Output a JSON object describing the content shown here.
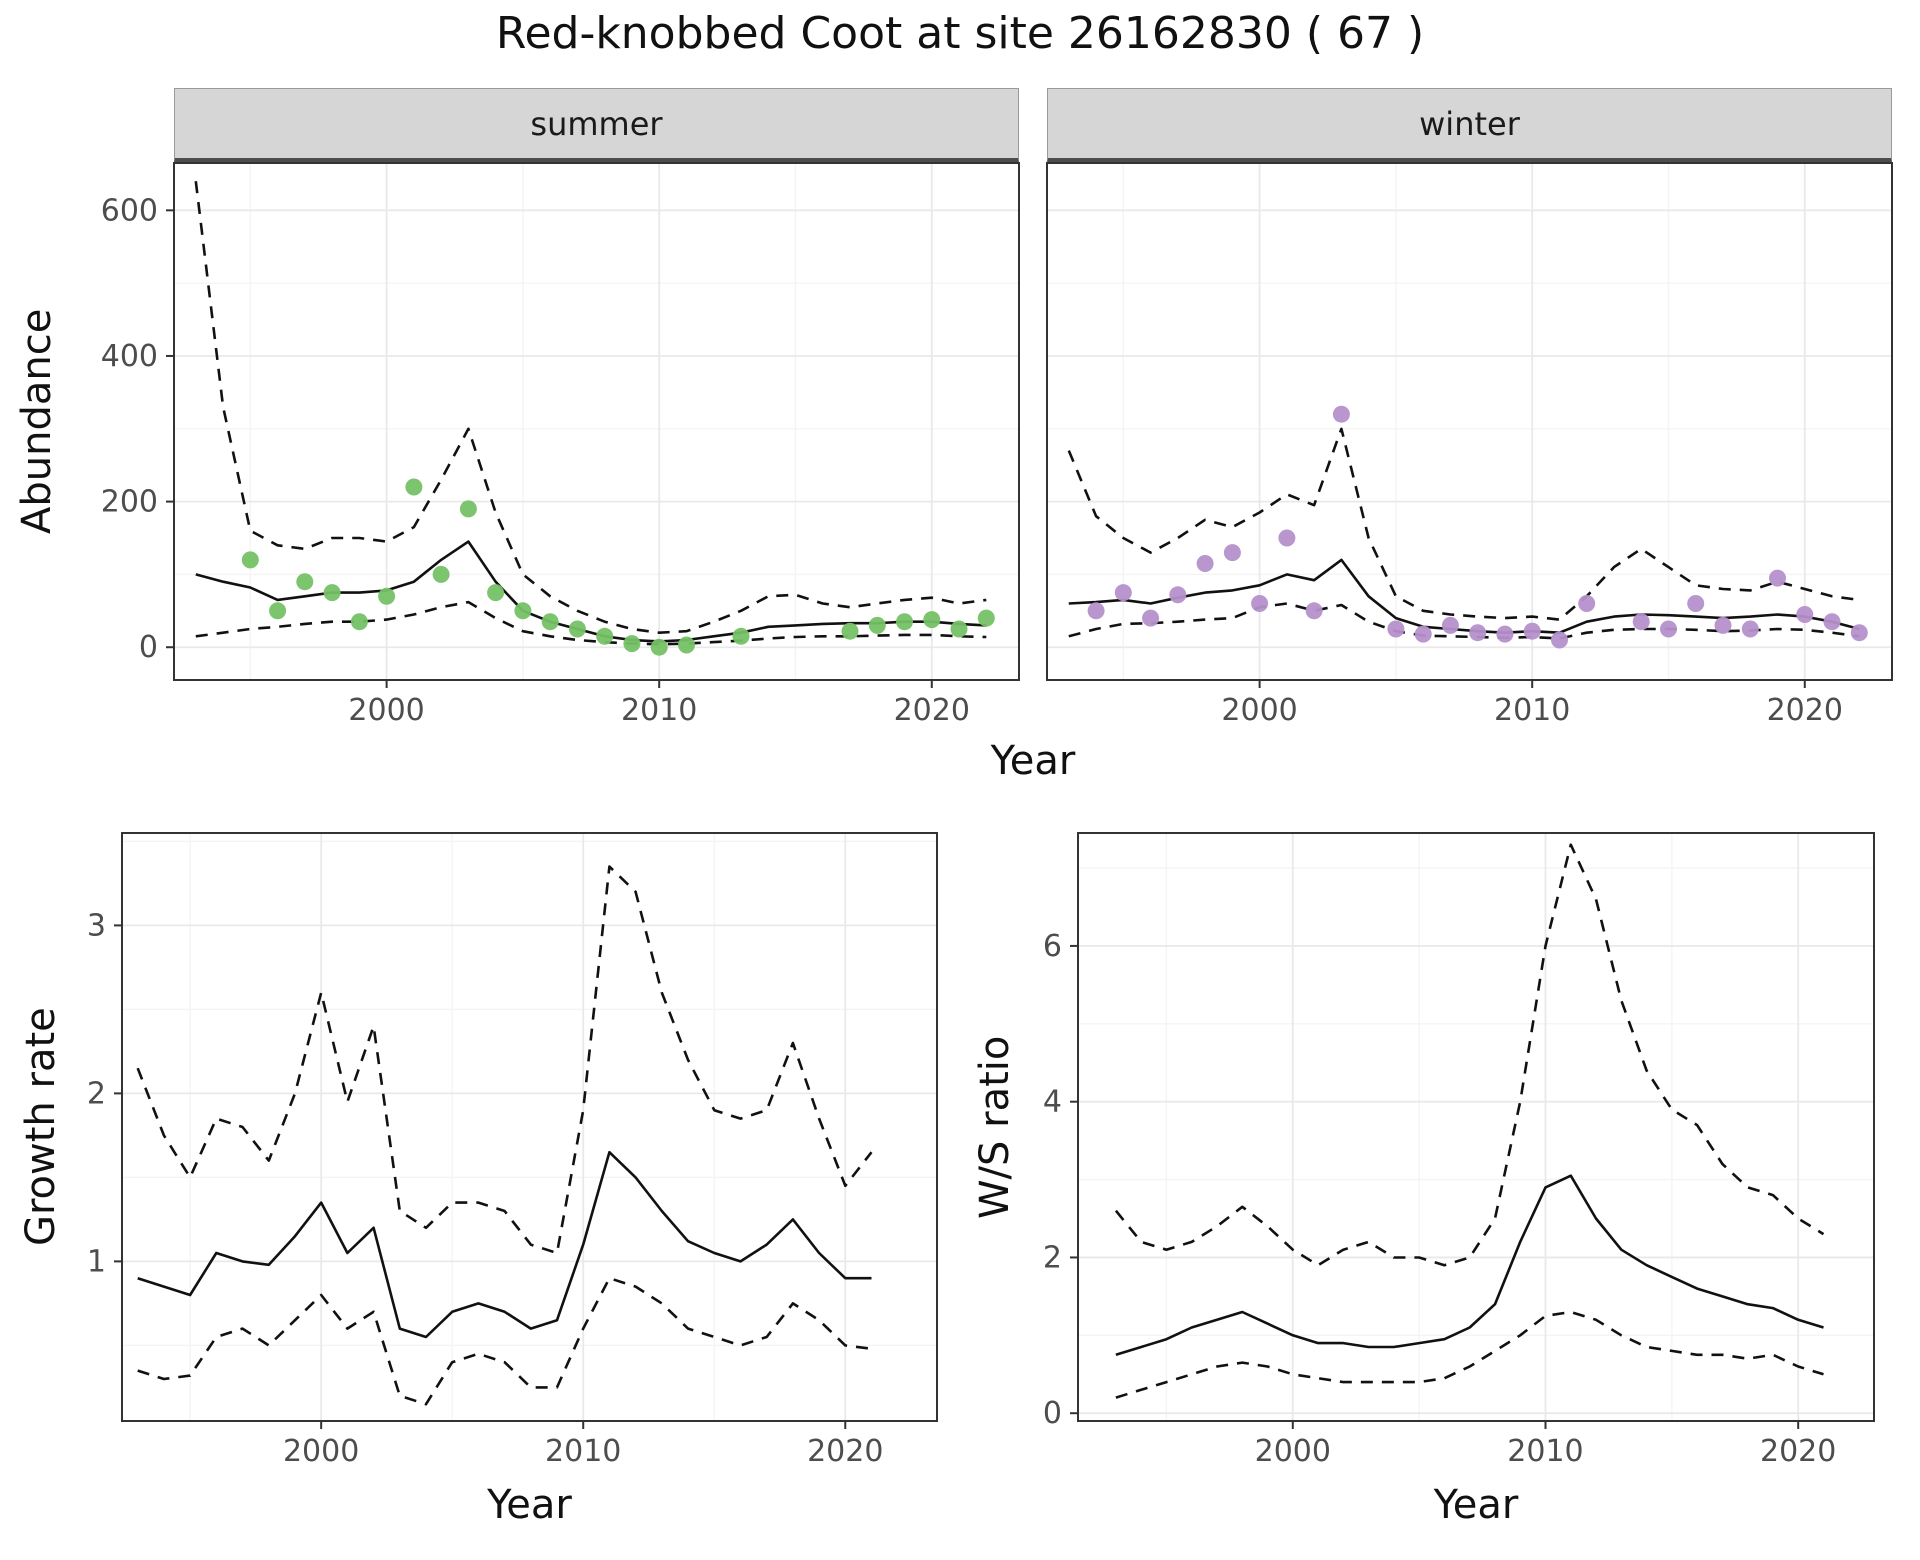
{
  "title": "Red-knobbed Coot at site 26162830 ( 67 )",
  "line_color": "#111111",
  "chart_data": [
    {
      "id": "summer",
      "type": "line",
      "facet_label": "summer",
      "ylabel": "Abundance",
      "xlabel": "Year",
      "xlim": [
        1992.2,
        2023.2
      ],
      "ylim": [
        -45,
        665
      ],
      "xticks": [
        2000,
        2010,
        2020
      ],
      "yticks": [
        0,
        200,
        400,
        600
      ],
      "show_y_labels": true,
      "point_color": "#75c165",
      "years": [
        1993,
        1994,
        1995,
        1996,
        1997,
        1998,
        1999,
        2000,
        2001,
        2002,
        2003,
        2004,
        2005,
        2006,
        2007,
        2008,
        2009,
        2010,
        2011,
        2012,
        2013,
        2014,
        2015,
        2016,
        2017,
        2018,
        2019,
        2020,
        2021,
        2022
      ],
      "series": [
        {
          "name": "modelled_median",
          "style": "solid",
          "values": [
            100,
            90,
            82,
            65,
            70,
            75,
            75,
            78,
            90,
            120,
            145,
            90,
            50,
            35,
            25,
            15,
            10,
            8,
            10,
            15,
            20,
            28,
            30,
            32,
            33,
            33,
            35,
            35,
            32,
            30
          ]
        },
        {
          "name": "upper_ci",
          "style": "dashed",
          "values": [
            640,
            330,
            160,
            140,
            135,
            150,
            150,
            145,
            165,
            230,
            300,
            185,
            100,
            70,
            50,
            35,
            25,
            20,
            22,
            35,
            50,
            70,
            72,
            60,
            55,
            60,
            65,
            68,
            60,
            65
          ]
        },
        {
          "name": "lower_ci",
          "style": "dashed",
          "values": [
            15,
            20,
            25,
            28,
            32,
            35,
            35,
            38,
            45,
            55,
            62,
            40,
            22,
            15,
            10,
            7,
            5,
            4,
            5,
            7,
            9,
            12,
            14,
            15,
            15,
            16,
            17,
            17,
            15,
            14
          ]
        }
      ],
      "points": {
        "name": "observed_counts",
        "years": [
          1995,
          1996,
          1997,
          1998,
          1999,
          2000,
          2001,
          2002,
          2003,
          2004,
          2005,
          2006,
          2007,
          2008,
          2009,
          2010,
          2011,
          2013,
          2017,
          2018,
          2019,
          2020,
          2021,
          2022
        ],
        "values": [
          120,
          50,
          90,
          75,
          35,
          70,
          220,
          100,
          190,
          75,
          50,
          35,
          25,
          15,
          5,
          0,
          3,
          15,
          22,
          30,
          35,
          38,
          25,
          40
        ]
      }
    },
    {
      "id": "winter",
      "type": "line",
      "facet_label": "winter",
      "ylabel": "Abundance",
      "xlabel": "Year",
      "xlim": [
        1992.2,
        2023.2
      ],
      "ylim": [
        -45,
        665
      ],
      "xticks": [
        2000,
        2010,
        2020
      ],
      "yticks": [
        0,
        200,
        400,
        600
      ],
      "show_y_labels": false,
      "point_color": "#b590cb",
      "years": [
        1993,
        1994,
        1995,
        1996,
        1997,
        1998,
        1999,
        2000,
        2001,
        2002,
        2003,
        2004,
        2005,
        2006,
        2007,
        2008,
        2009,
        2010,
        2011,
        2012,
        2013,
        2014,
        2015,
        2016,
        2017,
        2018,
        2019,
        2020,
        2021,
        2022
      ],
      "series": [
        {
          "name": "modelled_median",
          "style": "solid",
          "values": [
            60,
            62,
            65,
            60,
            68,
            75,
            78,
            85,
            100,
            92,
            120,
            70,
            40,
            28,
            25,
            22,
            20,
            22,
            20,
            35,
            42,
            45,
            44,
            42,
            40,
            42,
            45,
            42,
            35,
            25
          ]
        },
        {
          "name": "upper_ci",
          "style": "dashed",
          "values": [
            270,
            180,
            150,
            130,
            150,
            175,
            165,
            185,
            210,
            195,
            300,
            150,
            70,
            50,
            45,
            42,
            40,
            42,
            38,
            70,
            110,
            135,
            110,
            85,
            80,
            78,
            90,
            80,
            70,
            65
          ]
        },
        {
          "name": "lower_ci",
          "style": "dashed",
          "values": [
            15,
            25,
            32,
            33,
            35,
            38,
            40,
            55,
            60,
            50,
            58,
            35,
            22,
            16,
            15,
            14,
            13,
            14,
            12,
            20,
            24,
            25,
            25,
            24,
            22,
            23,
            25,
            24,
            20,
            15
          ]
        }
      ],
      "points": {
        "name": "observed_counts",
        "years": [
          1994,
          1995,
          1996,
          1997,
          1998,
          1999,
          2000,
          2001,
          2002,
          2003,
          2005,
          2006,
          2007,
          2008,
          2009,
          2010,
          2011,
          2012,
          2014,
          2015,
          2016,
          2017,
          2018,
          2019,
          2020,
          2021,
          2022
        ],
        "values": [
          50,
          75,
          40,
          72,
          115,
          130,
          60,
          150,
          50,
          320,
          25,
          18,
          30,
          20,
          18,
          22,
          10,
          60,
          35,
          25,
          60,
          30,
          25,
          95,
          45,
          35,
          20
        ]
      }
    },
    {
      "id": "growth",
      "type": "line",
      "facet_label": "",
      "ylabel": "Growth rate",
      "xlabel": "Year",
      "xlim": [
        1992.4,
        2023.5
      ],
      "ylim": [
        0.05,
        3.55
      ],
      "xticks": [
        2000,
        2010,
        2020
      ],
      "yticks": [
        1,
        2,
        3
      ],
      "show_y_labels": true,
      "years": [
        1993,
        1994,
        1995,
        1996,
        1997,
        1998,
        1999,
        2000,
        2001,
        2002,
        2003,
        2004,
        2005,
        2006,
        2007,
        2008,
        2009,
        2010,
        2011,
        2012,
        2013,
        2014,
        2015,
        2016,
        2017,
        2018,
        2019,
        2020,
        2021
      ],
      "series": [
        {
          "name": "growth_rate_median",
          "style": "solid",
          "values": [
            0.9,
            0.85,
            0.8,
            1.05,
            1.0,
            0.98,
            1.15,
            1.35,
            1.05,
            1.2,
            0.6,
            0.55,
            0.7,
            0.75,
            0.7,
            0.6,
            0.65,
            1.1,
            1.65,
            1.5,
            1.3,
            1.12,
            1.05,
            1.0,
            1.1,
            1.25,
            1.05,
            0.9,
            0.9
          ]
        },
        {
          "name": "upper_ci",
          "style": "dashed",
          "values": [
            2.15,
            1.75,
            1.5,
            1.85,
            1.8,
            1.6,
            2.0,
            2.6,
            1.95,
            2.4,
            1.3,
            1.2,
            1.35,
            1.35,
            1.3,
            1.1,
            1.05,
            1.9,
            3.35,
            3.2,
            2.6,
            2.2,
            1.9,
            1.85,
            1.9,
            2.3,
            1.85,
            1.45,
            1.65
          ]
        },
        {
          "name": "lower_ci",
          "style": "dashed",
          "values": [
            0.35,
            0.3,
            0.32,
            0.55,
            0.6,
            0.5,
            0.65,
            0.8,
            0.6,
            0.7,
            0.2,
            0.15,
            0.4,
            0.45,
            0.4,
            0.25,
            0.25,
            0.6,
            0.9,
            0.85,
            0.75,
            0.6,
            0.55,
            0.5,
            0.55,
            0.75,
            0.65,
            0.5,
            0.48
          ]
        }
      ]
    },
    {
      "id": "ws",
      "type": "line",
      "facet_label": "",
      "ylabel": "W/S ratio",
      "xlabel": "Year",
      "xlim": [
        1991.5,
        2023.0
      ],
      "ylim": [
        -0.1,
        7.45
      ],
      "xticks": [
        2000,
        2010,
        2020
      ],
      "yticks": [
        0,
        2,
        4,
        6
      ],
      "show_y_labels": true,
      "years": [
        1993,
        1994,
        1995,
        1996,
        1997,
        1998,
        1999,
        2000,
        2001,
        2002,
        2003,
        2004,
        2005,
        2006,
        2007,
        2008,
        2009,
        2010,
        2011,
        2012,
        2013,
        2014,
        2015,
        2016,
        2017,
        2018,
        2019,
        2020,
        2021
      ],
      "series": [
        {
          "name": "ws_ratio_median",
          "style": "solid",
          "values": [
            0.75,
            0.85,
            0.95,
            1.1,
            1.2,
            1.3,
            1.15,
            1.0,
            0.9,
            0.9,
            0.85,
            0.85,
            0.9,
            0.95,
            1.1,
            1.4,
            2.2,
            2.9,
            3.05,
            2.5,
            2.1,
            1.9,
            1.75,
            1.6,
            1.5,
            1.4,
            1.35,
            1.2,
            1.1
          ]
        },
        {
          "name": "upper_ci",
          "style": "dashed",
          "values": [
            2.6,
            2.2,
            2.1,
            2.2,
            2.4,
            2.65,
            2.4,
            2.1,
            1.9,
            2.1,
            2.2,
            2.0,
            2.0,
            1.9,
            2.0,
            2.5,
            4.0,
            6.0,
            7.3,
            6.6,
            5.3,
            4.4,
            3.9,
            3.7,
            3.2,
            2.9,
            2.8,
            2.5,
            2.3
          ]
        },
        {
          "name": "lower_ci",
          "style": "dashed",
          "values": [
            0.2,
            0.3,
            0.4,
            0.5,
            0.6,
            0.65,
            0.6,
            0.5,
            0.45,
            0.4,
            0.4,
            0.4,
            0.4,
            0.45,
            0.6,
            0.8,
            1.0,
            1.25,
            1.3,
            1.2,
            1.0,
            0.85,
            0.8,
            0.75,
            0.75,
            0.7,
            0.75,
            0.6,
            0.5
          ]
        }
      ]
    }
  ]
}
